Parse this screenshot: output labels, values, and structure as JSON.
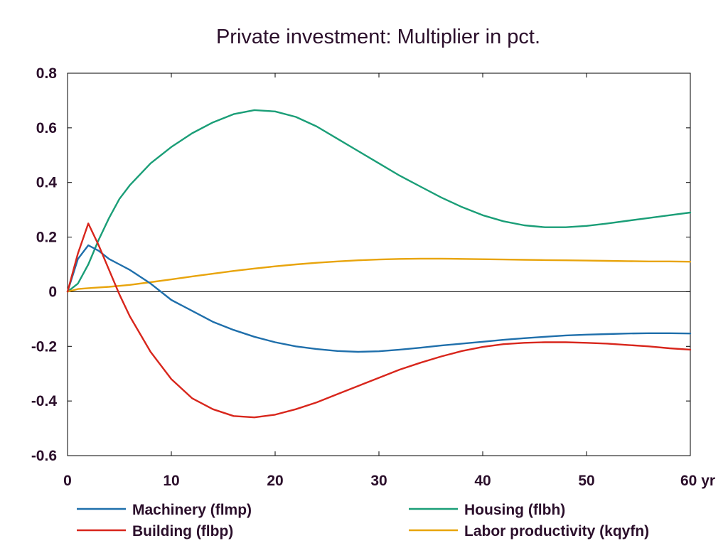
{
  "chart_data": {
    "type": "line",
    "title": "Private investment: Multiplier in pct.",
    "xlabel": "",
    "ylabel": "",
    "x_unit": "yr",
    "xlim": [
      0,
      60
    ],
    "ylim": [
      -0.6,
      0.8
    ],
    "x_ticks": [
      0,
      10,
      20,
      30,
      40,
      50,
      60
    ],
    "x_tick_labels": [
      "0",
      "10",
      "20",
      "30",
      "40",
      "50",
      "60 yr"
    ],
    "y_ticks": [
      -0.6,
      -0.4,
      -0.2,
      0,
      0.2,
      0.4,
      0.6,
      0.8
    ],
    "y_tick_labels": [
      "-0.6",
      "-0.4",
      "-0.2",
      "0",
      "0.2",
      "0.4",
      "0.6",
      "0.8"
    ],
    "grid": false,
    "zero_line": true,
    "legend_position": "bottom",
    "series": [
      {
        "name": "Machinery (flmp)",
        "color": "#1f6fab",
        "x": [
          0,
          1,
          2,
          3,
          4,
          5,
          6,
          8,
          10,
          12,
          14,
          16,
          18,
          20,
          22,
          24,
          26,
          28,
          30,
          32,
          34,
          36,
          38,
          40,
          42,
          44,
          46,
          48,
          50,
          52,
          54,
          56,
          58,
          60
        ],
        "y": [
          0,
          0.12,
          0.17,
          0.15,
          0.12,
          0.1,
          0.08,
          0.03,
          -0.03,
          -0.07,
          -0.11,
          -0.14,
          -0.165,
          -0.185,
          -0.2,
          -0.21,
          -0.217,
          -0.22,
          -0.218,
          -0.212,
          -0.205,
          -0.197,
          -0.19,
          -0.183,
          -0.176,
          -0.17,
          -0.165,
          -0.16,
          -0.157,
          -0.155,
          -0.153,
          -0.152,
          -0.152,
          -0.153
        ]
      },
      {
        "name": "Building (flbp)",
        "color": "#d8261c",
        "x": [
          0,
          1,
          2,
          3,
          4,
          5,
          6,
          8,
          10,
          12,
          14,
          16,
          18,
          20,
          22,
          24,
          26,
          28,
          30,
          32,
          34,
          36,
          38,
          40,
          42,
          44,
          46,
          48,
          50,
          52,
          54,
          56,
          58,
          60
        ],
        "y": [
          0,
          0.14,
          0.25,
          0.17,
          0.08,
          -0.01,
          -0.09,
          -0.22,
          -0.32,
          -0.39,
          -0.43,
          -0.455,
          -0.46,
          -0.45,
          -0.43,
          -0.405,
          -0.375,
          -0.345,
          -0.315,
          -0.285,
          -0.26,
          -0.237,
          -0.217,
          -0.202,
          -0.192,
          -0.187,
          -0.185,
          -0.185,
          -0.187,
          -0.19,
          -0.195,
          -0.2,
          -0.207,
          -0.212
        ]
      },
      {
        "name": "Housing (flbh)",
        "color": "#1a9e77",
        "x": [
          0,
          1,
          2,
          3,
          4,
          5,
          6,
          8,
          10,
          12,
          14,
          16,
          18,
          20,
          22,
          24,
          26,
          28,
          30,
          32,
          34,
          36,
          38,
          40,
          42,
          44,
          46,
          48,
          50,
          52,
          54,
          56,
          58,
          60
        ],
        "y": [
          0,
          0.03,
          0.1,
          0.19,
          0.27,
          0.34,
          0.39,
          0.47,
          0.53,
          0.58,
          0.62,
          0.65,
          0.665,
          0.66,
          0.64,
          0.605,
          0.56,
          0.515,
          0.47,
          0.425,
          0.385,
          0.345,
          0.31,
          0.28,
          0.258,
          0.243,
          0.236,
          0.236,
          0.241,
          0.25,
          0.26,
          0.27,
          0.28,
          0.29
        ]
      },
      {
        "name": "Labor productivity (kqyfn)",
        "color": "#e8a40c",
        "x": [
          0,
          1,
          2,
          4,
          6,
          8,
          10,
          12,
          14,
          16,
          18,
          20,
          22,
          24,
          26,
          28,
          30,
          32,
          34,
          36,
          38,
          40,
          42,
          44,
          46,
          48,
          50,
          52,
          54,
          56,
          58,
          60
        ],
        "y": [
          0,
          0.01,
          0.013,
          0.018,
          0.025,
          0.035,
          0.045,
          0.056,
          0.066,
          0.076,
          0.085,
          0.093,
          0.1,
          0.106,
          0.111,
          0.115,
          0.118,
          0.12,
          0.121,
          0.121,
          0.12,
          0.119,
          0.118,
          0.117,
          0.116,
          0.115,
          0.114,
          0.113,
          0.112,
          0.111,
          0.111,
          0.11
        ]
      }
    ]
  }
}
